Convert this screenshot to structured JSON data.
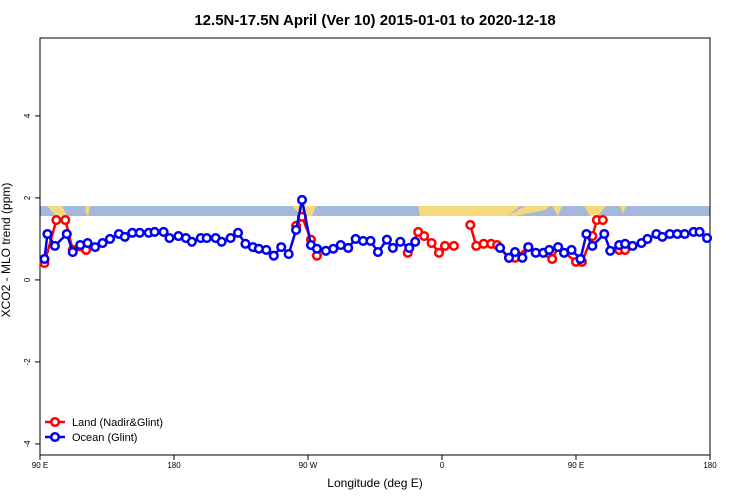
{
  "chart_data": {
    "type": "line",
    "title": "12.5N-17.5N April (Ver 10)   2015-01-01 to 2020-12-18",
    "x_label": "Longitude (deg E)",
    "y_label": "XCO2 - MLO trend (ppm)",
    "xlim": [
      90,
      540
    ],
    "ylim": [
      -4.27,
      5.9
    ],
    "xticks": [
      {
        "value": 90,
        "label": "90 E"
      },
      180,
      {
        "value": 270,
        "label": "90 W"
      },
      {
        "value": 360,
        "label": "0"
      },
      {
        "value": 450,
        "label": "90 E"
      },
      {
        "value": 540,
        "label": "180"
      }
    ],
    "yticks": [
      -4,
      -2,
      0,
      2,
      4
    ],
    "legend": "bottom-left",
    "series": [
      {
        "name": "Land (Nadir&Glint)",
        "color": "#ff0000",
        "x": [
          93,
          101,
          107,
          112,
          121,
          200,
          262,
          266,
          272,
          276,
          310,
          337,
          344,
          348,
          353,
          358,
          362,
          368,
          372,
          379,
          383,
          388,
          393,
          397,
          405,
          409,
          418,
          434,
          438,
          450,
          454,
          461,
          464,
          468,
          470,
          479,
          483
        ],
        "values": [
          0.41,
          1.46,
          1.46,
          0.73,
          0.73,
          null,
          1.32,
          1.54,
          0.98,
          0.59,
          null,
          0.66,
          1.17,
          1.07,
          0.9,
          0.66,
          0.83,
          0.83,
          null,
          1.34,
          0.83,
          0.88,
          0.88,
          0.85,
          0.54,
          0.54,
          0.8,
          0.51,
          0.8,
          0.44,
          0.44,
          1.07,
          1.46,
          1.46,
          null,
          0.73,
          0.73
        ]
      },
      {
        "name": "Ocean (Glint)",
        "color": "#0000ee",
        "x": [
          93,
          95,
          100,
          108,
          112,
          117,
          122,
          127,
          132,
          137,
          143,
          147,
          152,
          157,
          163,
          167,
          173,
          177,
          183,
          188,
          192,
          198,
          202,
          208,
          212,
          218,
          223,
          228,
          233,
          237,
          242,
          247,
          252,
          257,
          262,
          266,
          272,
          276,
          282,
          287,
          292,
          297,
          302,
          307,
          312,
          317,
          323,
          327,
          332,
          338,
          342,
          370,
          399,
          405,
          409,
          414,
          418,
          423,
          428,
          432,
          438,
          442,
          447,
          453,
          457,
          461,
          469,
          473,
          479,
          483,
          488,
          494,
          498,
          504,
          508,
          513,
          518,
          523,
          529,
          533,
          538
        ],
        "values": [
          0.51,
          1.12,
          0.83,
          1.12,
          0.68,
          0.85,
          0.9,
          0.8,
          0.9,
          1.0,
          1.12,
          1.05,
          1.15,
          1.15,
          1.15,
          1.17,
          1.17,
          1.02,
          1.07,
          1.02,
          0.93,
          1.02,
          1.02,
          1.02,
          0.93,
          1.02,
          1.15,
          0.88,
          0.8,
          0.76,
          0.73,
          0.59,
          0.8,
          0.63,
          1.22,
          1.95,
          0.85,
          0.76,
          0.71,
          0.76,
          0.85,
          0.78,
          1.0,
          0.95,
          0.95,
          0.68,
          0.98,
          0.78,
          0.93,
          0.78,
          0.93,
          null,
          0.78,
          0.54,
          0.68,
          0.54,
          0.8,
          0.66,
          0.66,
          0.73,
          0.8,
          0.66,
          0.73,
          0.51,
          1.12,
          0.83,
          1.12,
          0.71,
          0.85,
          0.88,
          0.83,
          0.9,
          1.0,
          1.12,
          1.05,
          1.12,
          1.12,
          1.12,
          1.17,
          1.17,
          1.02
        ]
      }
    ]
  }
}
